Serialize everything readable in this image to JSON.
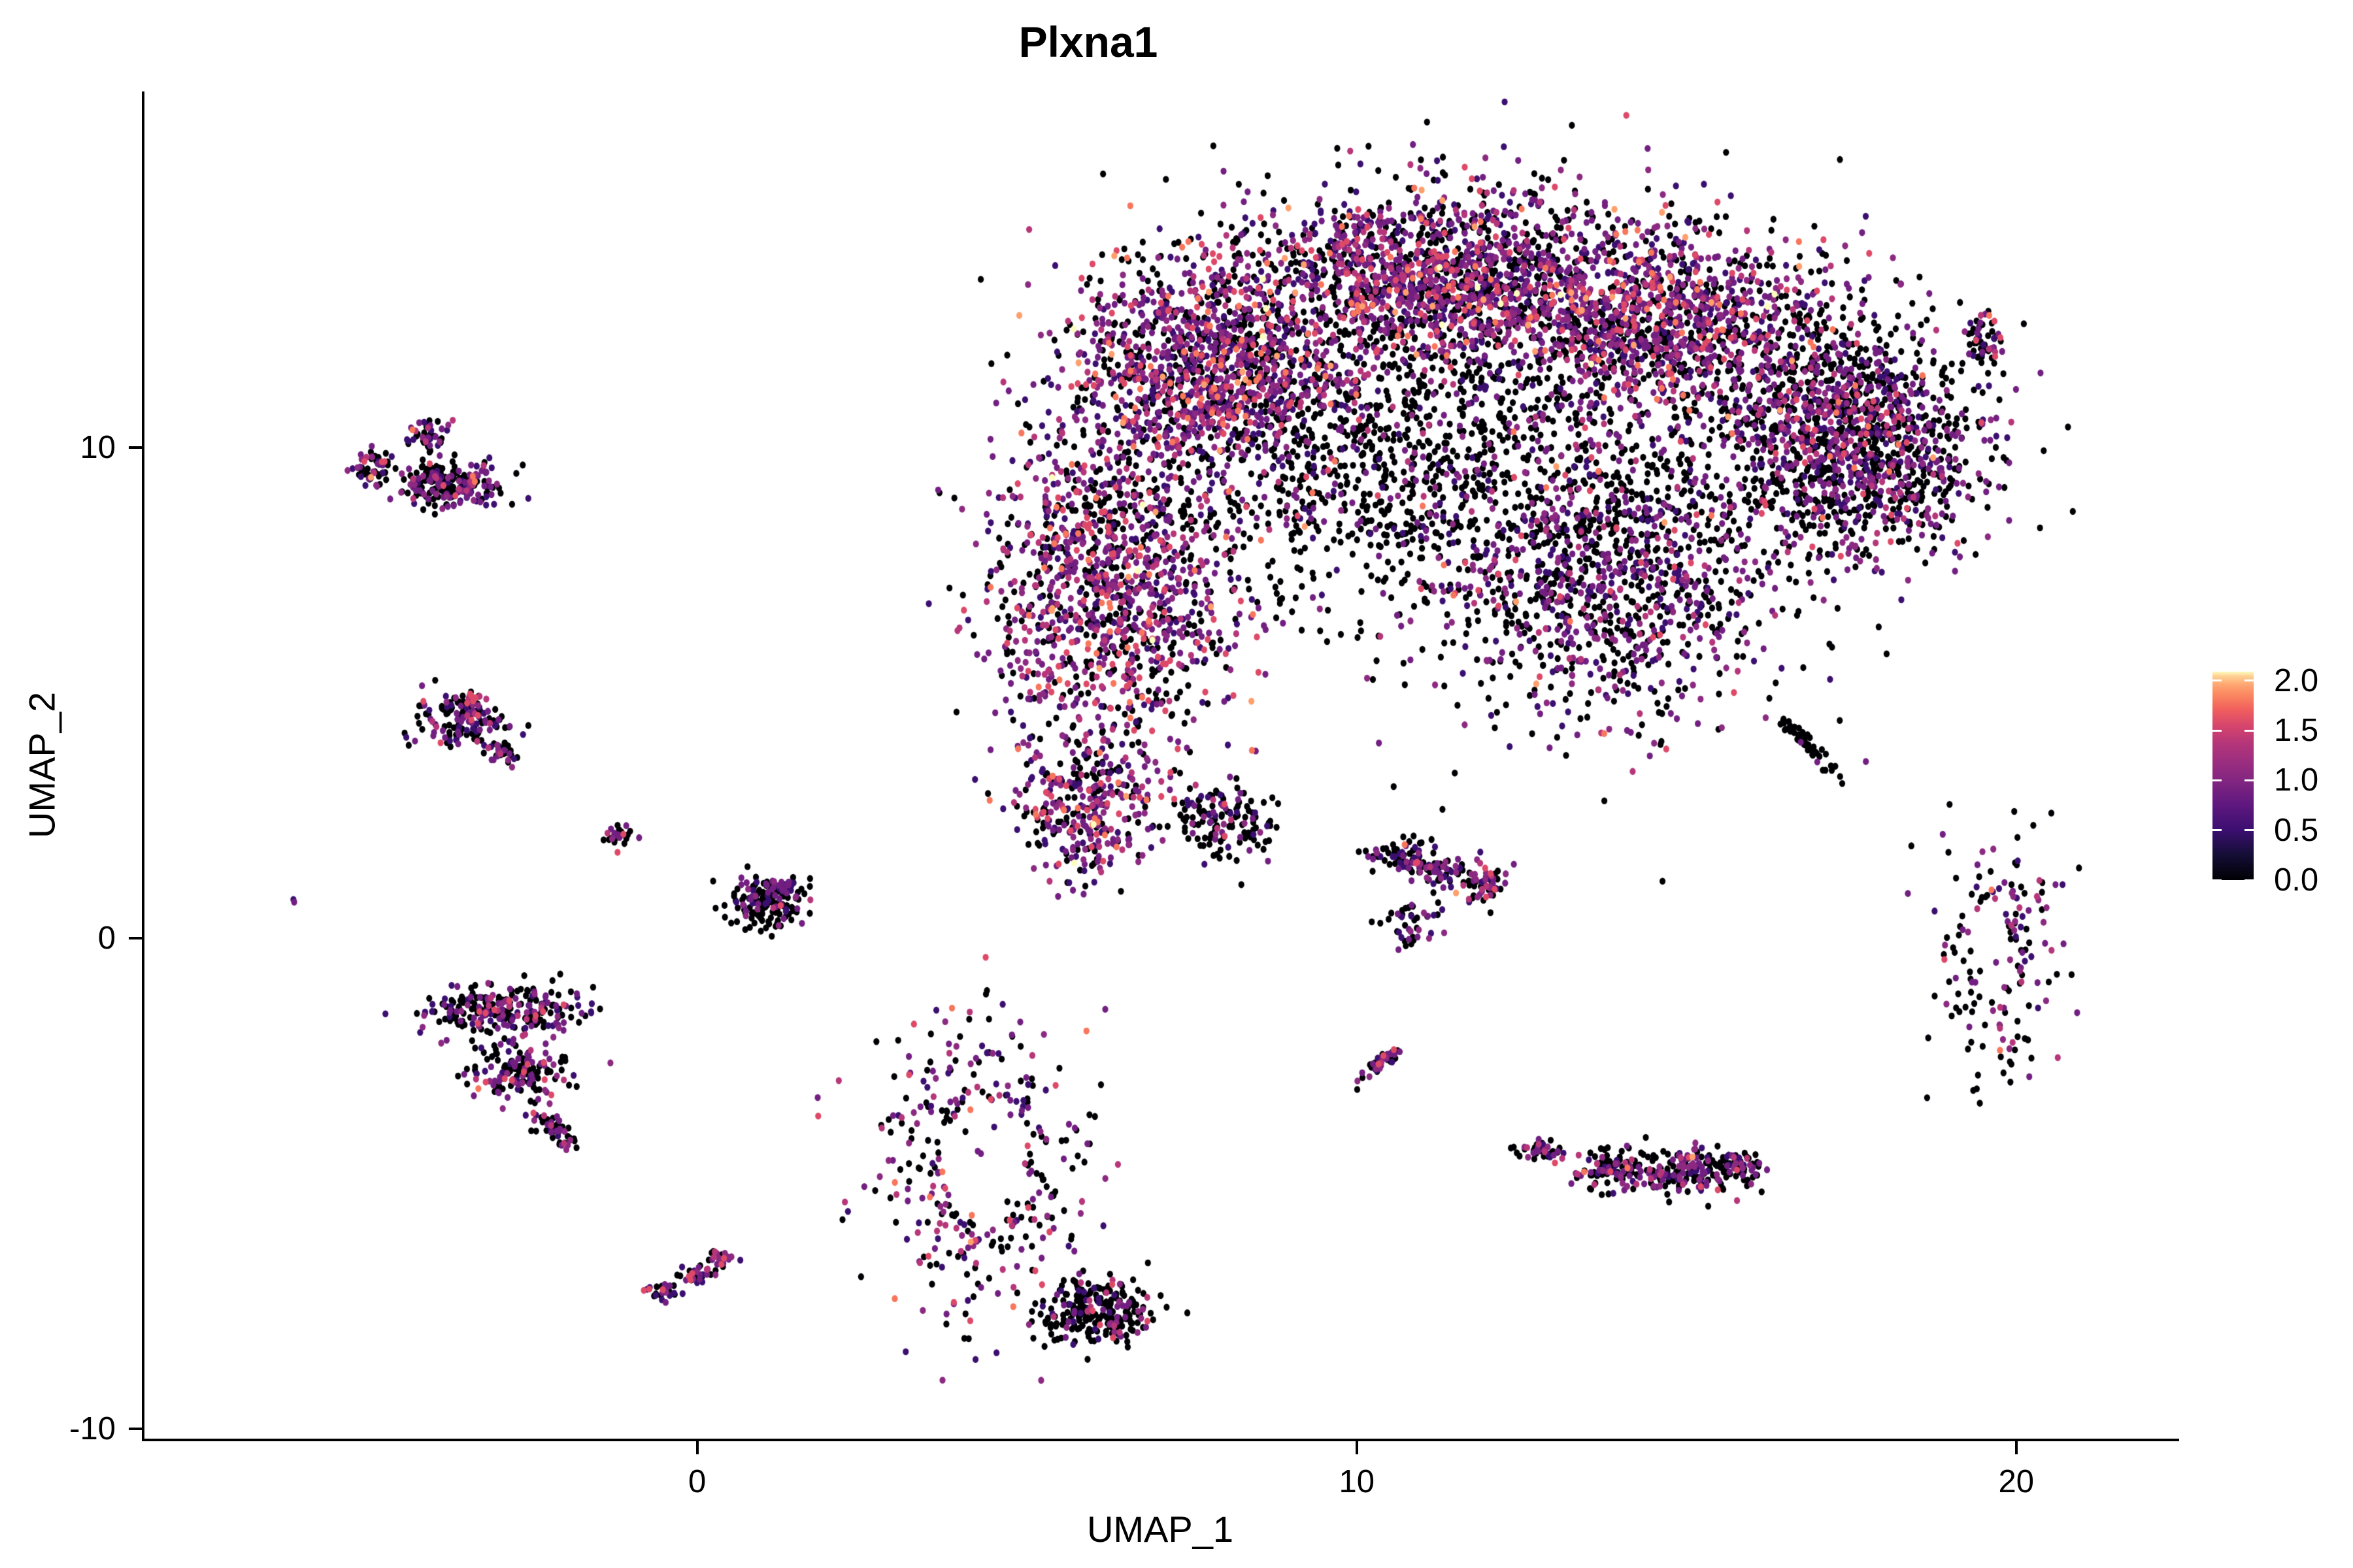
{
  "chart_data": {
    "type": "scatter",
    "title": "Plxna1",
    "xlabel": "UMAP_1",
    "ylabel": "UMAP_2",
    "x_ticks": [
      {
        "label": "0",
        "value": 0
      },
      {
        "label": "10",
        "value": 10
      },
      {
        "label": "20",
        "value": 20
      }
    ],
    "y_ticks": [
      {
        "label": "-10",
        "value": -10
      },
      {
        "label": "0",
        "value": 0
      },
      {
        "label": "10",
        "value": 10
      }
    ],
    "xlim": [
      -8.39,
      22.43
    ],
    "ylim": [
      -10.2,
      17.26
    ],
    "grid": "off",
    "legend_position": "right",
    "colorbar": {
      "ticks": [
        {
          "label": "2.0",
          "value": 2.0
        },
        {
          "label": "1.5",
          "value": 1.5
        },
        {
          "label": "1.0",
          "value": 1.0
        },
        {
          "label": "0.5",
          "value": 0.5
        },
        {
          "label": "0.0",
          "value": 0.0
        }
      ],
      "min": 0.0,
      "max": 2.09,
      "gradient": [
        [
          "#000004",
          0
        ],
        [
          "#140E36",
          0.12
        ],
        [
          "#3B0F70",
          0.24
        ],
        [
          "#5F187F",
          0.36
        ],
        [
          "#832681",
          0.48
        ],
        [
          "#9C2E7F",
          0.57
        ],
        [
          "#B63679",
          0.66
        ],
        [
          "#D6456C",
          0.74
        ],
        [
          "#F1605D",
          0.82
        ],
        [
          "#FB8861",
          0.89
        ],
        [
          "#FEA873",
          0.94
        ],
        [
          "#FED395",
          0.98
        ],
        [
          "#FCFDBF",
          1
        ]
      ]
    },
    "point_palette": {
      "black": "#000004",
      "dpurple": "#3B0F70",
      "purple": "#721F81",
      "mpurple": "#8C2981",
      "magenta": "#B63679",
      "pink": "#DE4968",
      "salmon": "#F8765C",
      "orange": "#FE9F6D",
      "peach": "#FEC98D",
      "cream": "#FCFDBF"
    },
    "palette_levels": {
      "black": 0,
      "dpurple": 1,
      "purple": 2,
      "mpurple": 3,
      "magenta": 4,
      "pink": 5,
      "salmon": 6,
      "orange": 7,
      "peach": 8,
      "cream": 9
    },
    "palette_mixes": {
      "hi": [
        [
          "black",
          0.34
        ],
        [
          "dpurple",
          0.14
        ],
        [
          "purple",
          0.22
        ],
        [
          "mpurple",
          0.12
        ],
        [
          "magenta",
          0.08
        ],
        [
          "pink",
          0.06
        ],
        [
          "salmon",
          0.028
        ],
        [
          "orange",
          0.009
        ],
        [
          "cream",
          0.003
        ]
      ],
      "mid": [
        [
          "black",
          0.52
        ],
        [
          "dpurple",
          0.12
        ],
        [
          "purple",
          0.17
        ],
        [
          "mpurple",
          0.09
        ],
        [
          "magenta",
          0.05
        ],
        [
          "pink",
          0.028
        ],
        [
          "salmon",
          0.009
        ],
        [
          "orange",
          0.003
        ]
      ],
      "low": [
        [
          "black",
          0.76
        ],
        [
          "dpurple",
          0.08
        ],
        [
          "purple",
          0.09
        ],
        [
          "mpurple",
          0.04
        ],
        [
          "magenta",
          0.018
        ],
        [
          "pink",
          0.009
        ],
        [
          "salmon",
          0.003
        ]
      ],
      "blk": [
        [
          "black",
          0.95
        ],
        [
          "purple",
          0.05
        ]
      ],
      "pnk": [
        [
          "magenta",
          0.5
        ],
        [
          "pink",
          0.5
        ]
      ],
      "pur": [
        [
          "purple",
          0.7
        ],
        [
          "dpurple",
          0.3
        ]
      ],
      "mpink": [
        [
          "black",
          0.45
        ],
        [
          "dpurple",
          0.1
        ],
        [
          "purple",
          0.2
        ],
        [
          "mpurple",
          0.08
        ],
        [
          "magenta",
          0.09
        ],
        [
          "pink",
          0.08
        ]
      ],
      "nlow": [
        [
          "black",
          0.74
        ],
        [
          "dpurple",
          0.06
        ],
        [
          "purple",
          0.08
        ],
        [
          "mpurple",
          0.04
        ],
        [
          "magenta",
          0.04
        ],
        [
          "pink",
          0.04
        ]
      ],
      "ring": [
        [
          "black",
          0.48
        ],
        [
          "dpurple",
          0.12
        ],
        [
          "purple",
          0.2
        ],
        [
          "mpurple",
          0.08
        ],
        [
          "magenta",
          0.06
        ],
        [
          "pink",
          0.04
        ],
        [
          "salmon",
          0.015
        ],
        [
          "orange",
          0.005
        ]
      ]
    },
    "seed": 42,
    "point_rx": 4.6,
    "point_ry": 5.3,
    "clusters": [
      {
        "name": "main-top-left",
        "palette": "hi",
        "components": [
          [
            7.76,
            11.66,
            1.05,
            1.15,
            0,
            1250
          ]
        ]
      },
      {
        "name": "main-top-center",
        "palette": "hi",
        "components": [
          [
            11.2,
            13.4,
            1.35,
            0.95,
            0,
            1500
          ]
        ]
      },
      {
        "name": "main-top-right",
        "palette": "hi",
        "components": [
          [
            14.6,
            12.6,
            1.15,
            1.0,
            0,
            1200
          ]
        ]
      },
      {
        "name": "main-left-lobe",
        "palette": "hi",
        "components": [
          [
            6.3,
            7.2,
            0.95,
            1.7,
            0,
            1300
          ]
        ]
      },
      {
        "name": "main-left-lobe-tip",
        "palette": "hi",
        "components": [
          [
            5.9,
            2.7,
            0.55,
            0.75,
            0,
            330
          ]
        ]
      },
      {
        "name": "main-mid-right",
        "palette": "mid",
        "components": [
          [
            13.7,
            7.5,
            1.4,
            1.5,
            0,
            1250
          ]
        ]
      },
      {
        "name": "main-right-column",
        "palette": "mid",
        "components": [
          [
            17.0,
            10.6,
            0.9,
            1.3,
            0,
            800
          ]
        ]
      },
      {
        "name": "main-ear",
        "palette": "mid",
        "components": [
          [
            18.0,
            9.9,
            0.95,
            1.1,
            0,
            650
          ],
          [
            19.5,
            12.2,
            0.22,
            0.3,
            0,
            60
          ]
        ]
      },
      {
        "name": "main-center-sparse",
        "palette": "low",
        "components": [
          [
            10.2,
            9.8,
            1.25,
            1.3,
            0,
            520
          ]
        ]
      },
      {
        "name": "main-chin-tail",
        "palette": "low",
        "components": [
          [
            7.95,
            2.4,
            0.45,
            0.35,
            -25,
            140
          ]
        ]
      },
      {
        "name": "main-filler",
        "palette": "blk",
        "components": [
          [
            11.5,
            10.5,
            2.6,
            2.2,
            0,
            600
          ]
        ]
      },
      {
        "name": "sat-top-left",
        "palette": "mid",
        "components": [
          [
            -4.96,
            9.6,
            0.16,
            0.22,
            0,
            55
          ],
          [
            -3.74,
            9.27,
            0.38,
            0.26,
            -10,
            220
          ],
          [
            -4.05,
            10.22,
            0.15,
            0.2,
            0,
            45
          ]
        ]
      },
      {
        "name": "sat-left-upper",
        "palette": "mid",
        "components": [
          [
            -3.54,
            4.47,
            0.33,
            0.28,
            0,
            150
          ],
          [
            -2.99,
            3.81,
            0.18,
            0.1,
            -30,
            35
          ]
        ]
      },
      {
        "name": "sat-left-upper-pink",
        "palette": "pnk",
        "components": [
          [
            -3.46,
            4.9,
            0.07,
            0.06,
            0,
            12
          ]
        ]
      },
      {
        "name": "sat-tiny-mid",
        "palette": "mpink",
        "components": [
          [
            -1.21,
            2.12,
            0.12,
            0.11,
            0,
            28
          ]
        ]
      },
      {
        "name": "sat-lone-dot",
        "palette": "pur",
        "components": [
          [
            -6.14,
            0.79,
            0.025,
            0.025,
            0,
            2
          ]
        ]
      },
      {
        "name": "sat-zero-left",
        "palette": "low",
        "components": [
          [
            1.04,
            0.75,
            0.3,
            0.27,
            0,
            160
          ]
        ]
      },
      {
        "name": "sat-zero-left-purple",
        "palette": "pur",
        "components": [
          [
            1.3,
            1.05,
            0.12,
            0.1,
            0,
            25
          ]
        ]
      },
      {
        "name": "sat-left-lower",
        "palette": "mid",
        "components": [
          [
            -2.94,
            -1.45,
            0.62,
            0.25,
            0,
            260
          ],
          [
            -2.75,
            -2.72,
            0.4,
            0.3,
            0,
            140
          ],
          [
            -2.1,
            -3.91,
            0.25,
            0.12,
            -61,
            50
          ]
        ]
      },
      {
        "name": "ring-center",
        "palette": "ring",
        "components": [
          [
            4.27,
            -4.55,
            0.78,
            1.5,
            0,
            430
          ]
        ],
        "hole": {
          "cx": 4.34,
          "cy": -4.58,
          "rx": 0.62,
          "ry": 1.25,
          "keep": 0.08
        }
      },
      {
        "name": "sat-right-band",
        "palette": "mid",
        "components": [
          [
            10.63,
            1.68,
            0.25,
            0.18,
            0,
            60
          ],
          [
            11.28,
            1.41,
            0.3,
            0.15,
            0,
            70
          ],
          [
            11.97,
            1.08,
            0.2,
            0.2,
            0,
            55
          ],
          [
            10.83,
            0.28,
            0.2,
            0.25,
            0,
            45
          ]
        ]
      },
      {
        "name": "sat-tiny-chain",
        "palette": "mpink",
        "components": [
          [
            10.37,
            -2.52,
            0.22,
            0.06,
            46,
            45
          ]
        ]
      },
      {
        "name": "sat-diag-long",
        "palette": "mid",
        "components": [
          [
            12.86,
            -4.34,
            0.2,
            0.12,
            0,
            45
          ],
          [
            13.9,
            -4.71,
            0.3,
            0.2,
            0,
            110
          ],
          [
            14.99,
            -4.78,
            0.3,
            0.25,
            0,
            140
          ],
          [
            15.74,
            -4.71,
            0.18,
            0.22,
            0,
            70
          ]
        ]
      },
      {
        "name": "sat-streak",
        "palette": "blk",
        "components": [
          [
            16.8,
            3.98,
            0.38,
            0.07,
            -54,
            55
          ]
        ]
      },
      {
        "name": "ring-right",
        "palette": "mid",
        "components": [
          [
            19.75,
            -0.32,
            0.45,
            1.3,
            0,
            190
          ]
        ],
        "hole": {
          "cx": 19.6,
          "cy": -0.32,
          "rx": 0.28,
          "ry": 0.95,
          "keep": 0.1
        }
      },
      {
        "name": "sat-s-chain",
        "palette": "mpink",
        "components": [
          [
            -0.47,
            -7.18,
            0.12,
            0.1,
            0,
            25
          ],
          [
            -0.07,
            -6.84,
            0.15,
            0.1,
            0,
            30
          ],
          [
            0.38,
            -6.51,
            0.12,
            0.12,
            0,
            25
          ]
        ]
      },
      {
        "name": "sat-bottom",
        "palette": "nlow",
        "components": [
          [
            6.08,
            -7.58,
            0.45,
            0.33,
            0,
            260
          ]
        ]
      }
    ]
  }
}
